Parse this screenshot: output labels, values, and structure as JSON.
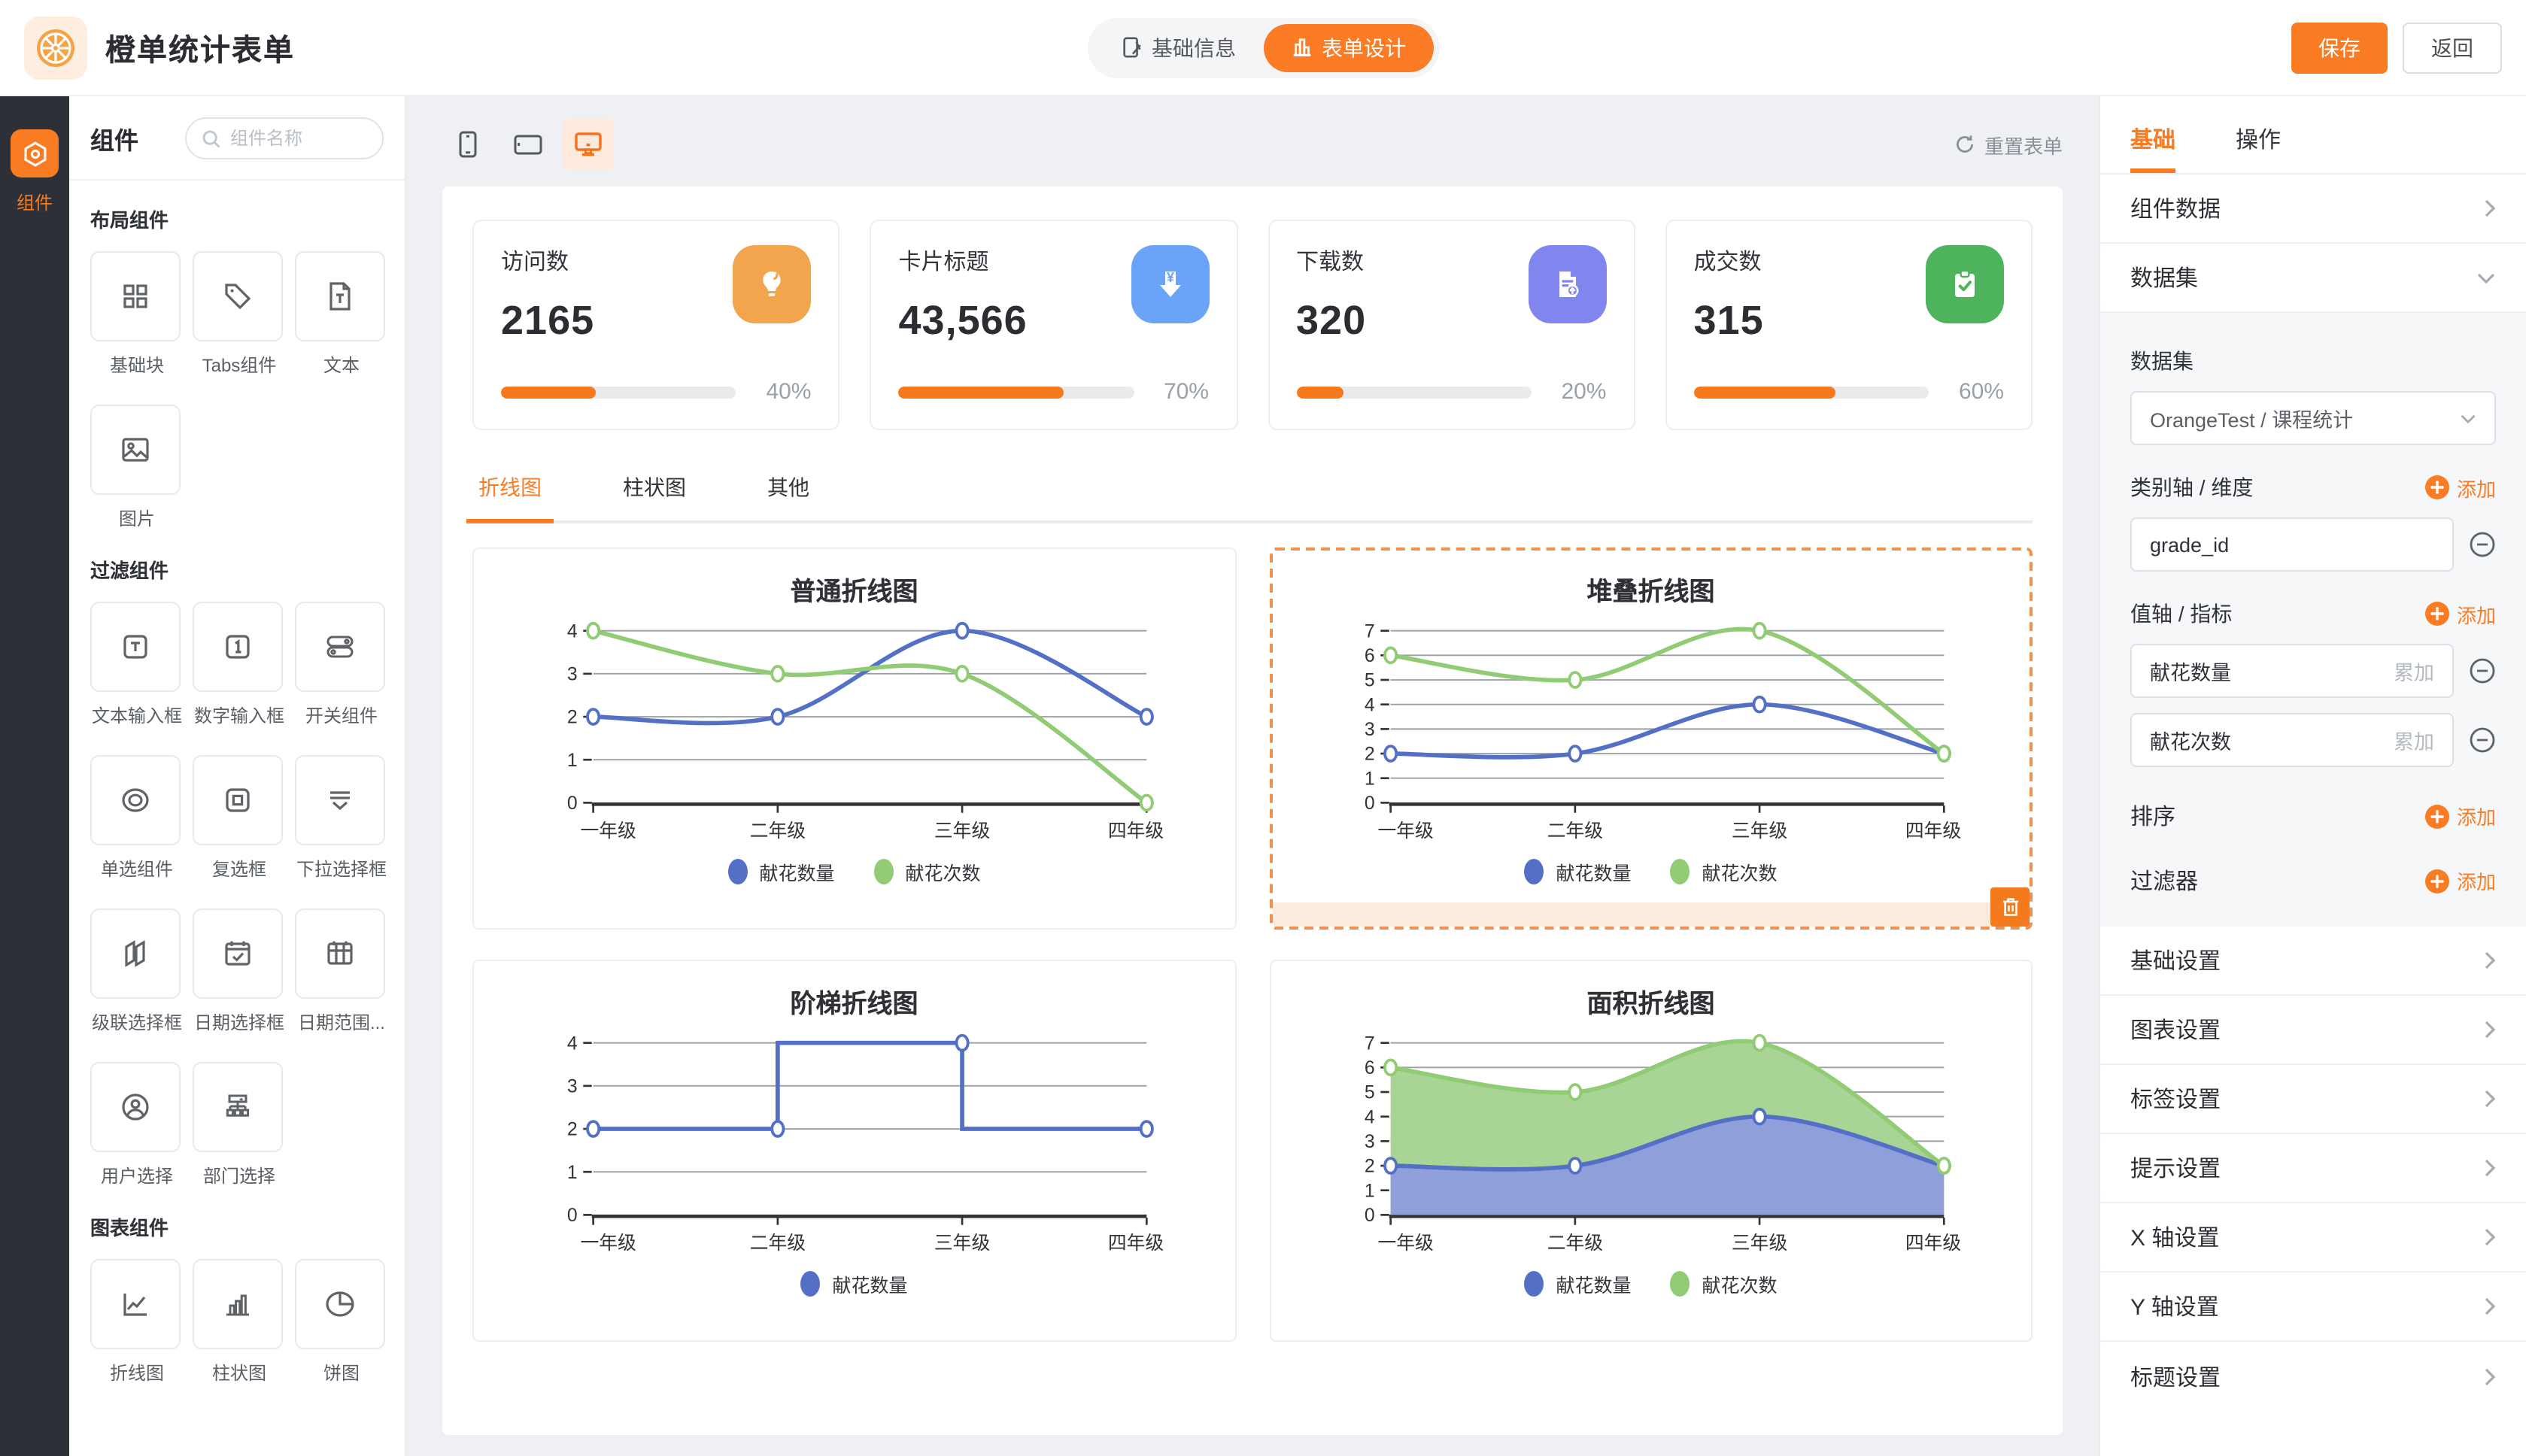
{
  "header": {
    "app_title": "橙单统计表单",
    "nav": [
      {
        "label": "基础信息"
      },
      {
        "label": "表单设计"
      }
    ],
    "save_label": "保存",
    "back_label": "返回"
  },
  "rail": {
    "label": "组件"
  },
  "components_panel": {
    "title": "组件",
    "search_placeholder": "组件名称",
    "sections": [
      {
        "title": "布局组件",
        "items": [
          {
            "label": "基础块"
          },
          {
            "label": "Tabs组件"
          },
          {
            "label": "文本"
          },
          {
            "label": "图片"
          }
        ]
      },
      {
        "title": "过滤组件",
        "items": [
          {
            "label": "文本输入框"
          },
          {
            "label": "数字输入框"
          },
          {
            "label": "开关组件"
          },
          {
            "label": "单选组件"
          },
          {
            "label": "复选框"
          },
          {
            "label": "下拉选择框"
          },
          {
            "label": "级联选择框"
          },
          {
            "label": "日期选择框"
          },
          {
            "label": "日期范围..."
          },
          {
            "label": "用户选择"
          },
          {
            "label": "部门选择"
          }
        ]
      },
      {
        "title": "图表组件",
        "items": [
          {
            "label": "折线图"
          },
          {
            "label": "柱状图"
          },
          {
            "label": "饼图"
          }
        ]
      }
    ]
  },
  "canvas": {
    "reset_label": "重置表单",
    "tabs": [
      {
        "label": "折线图"
      },
      {
        "label": "柱状图"
      },
      {
        "label": "其他"
      }
    ],
    "stat_cards": [
      {
        "label": "访问数",
        "value": "2165",
        "percent": "40%",
        "pct": 40,
        "icon": "bulb-icon",
        "color": "#f2a54c"
      },
      {
        "label": "卡片标题",
        "value": "43,566",
        "percent": "70%",
        "pct": 70,
        "icon": "money-download-icon",
        "color": "#6aa3f7"
      },
      {
        "label": "下载数",
        "value": "320",
        "percent": "20%",
        "pct": 20,
        "icon": "document-upload-icon",
        "color": "#8186ee"
      },
      {
        "label": "成交数",
        "value": "315",
        "percent": "60%",
        "pct": 60,
        "icon": "clipboard-check-icon",
        "color": "#4db35c"
      }
    ]
  },
  "chart_data": [
    {
      "type": "line",
      "title": "普通折线图",
      "smooth": true,
      "stacked": false,
      "grid": true,
      "legend_position": "bottom",
      "categories": [
        "一年级",
        "二年级",
        "三年级",
        "四年级"
      ],
      "ylim": [
        0,
        4
      ],
      "series": [
        {
          "name": "献花数量",
          "color": "#5470c6",
          "fill": "#8e9fd9",
          "values": [
            2,
            2,
            4,
            2
          ]
        },
        {
          "name": "献花次数",
          "color": "#91cc75",
          "fill": "#a8d495",
          "values": [
            4,
            3,
            3,
            0
          ]
        }
      ]
    },
    {
      "type": "line",
      "title": "堆叠折线图",
      "smooth": true,
      "stacked": true,
      "grid": true,
      "legend_position": "bottom",
      "categories": [
        "一年级",
        "二年级",
        "三年级",
        "四年级"
      ],
      "ylim": [
        0,
        7
      ],
      "series": [
        {
          "name": "献花数量",
          "color": "#5470c6",
          "fill": "#8e9fd9",
          "values": [
            2,
            2,
            4,
            2
          ]
        },
        {
          "name": "献花次数",
          "color": "#91cc75",
          "fill": "#a8d495",
          "values": [
            4,
            3,
            3,
            0
          ]
        }
      ]
    },
    {
      "type": "step",
      "title": "阶梯折线图",
      "smooth": false,
      "stacked": false,
      "grid": true,
      "legend_position": "bottom",
      "categories": [
        "一年级",
        "二年级",
        "三年级",
        "四年级"
      ],
      "ylim": [
        0,
        4
      ],
      "series": [
        {
          "name": "献花数量",
          "color": "#5470c6",
          "fill": "#8e9fd9",
          "values": [
            2,
            2,
            4,
            2
          ]
        }
      ]
    },
    {
      "type": "area",
      "title": "面积折线图",
      "smooth": true,
      "stacked": true,
      "grid": true,
      "legend_position": "bottom",
      "categories": [
        "一年级",
        "二年级",
        "三年级",
        "四年级"
      ],
      "ylim": [
        0,
        7
      ],
      "series": [
        {
          "name": "献花数量",
          "color": "#5470c6",
          "fill": "#8e9fd9",
          "values": [
            2,
            2,
            4,
            2
          ]
        },
        {
          "name": "献花次数",
          "color": "#91cc75",
          "fill": "#a8d495",
          "values": [
            4,
            3,
            3,
            0
          ]
        }
      ]
    }
  ],
  "right_panel": {
    "tabs": [
      {
        "label": "基础"
      },
      {
        "label": "操作"
      }
    ],
    "component_data_row": "组件数据",
    "dataset_row": "数据集",
    "dataset": {
      "label": "数据集",
      "value": "OrangeTest / 课程统计"
    },
    "dimension": {
      "label": "类别轴 / 维度",
      "add_label": "添加",
      "fields": [
        {
          "name": "grade_id"
        }
      ]
    },
    "metrics": {
      "label": "值轴 / 指标",
      "add_label": "添加",
      "fields": [
        {
          "name": "献花数量",
          "agg": "累加"
        },
        {
          "name": "献花次数",
          "agg": "累加"
        }
      ]
    },
    "sort": {
      "label": "排序",
      "add_label": "添加"
    },
    "filter": {
      "label": "过滤器",
      "add_label": "添加"
    },
    "settings": [
      {
        "label": "基础设置"
      },
      {
        "label": "图表设置"
      },
      {
        "label": "标签设置"
      },
      {
        "label": "提示设置"
      },
      {
        "label": "X 轴设置"
      },
      {
        "label": "Y 轴设置"
      },
      {
        "label": "标题设置"
      }
    ]
  }
}
